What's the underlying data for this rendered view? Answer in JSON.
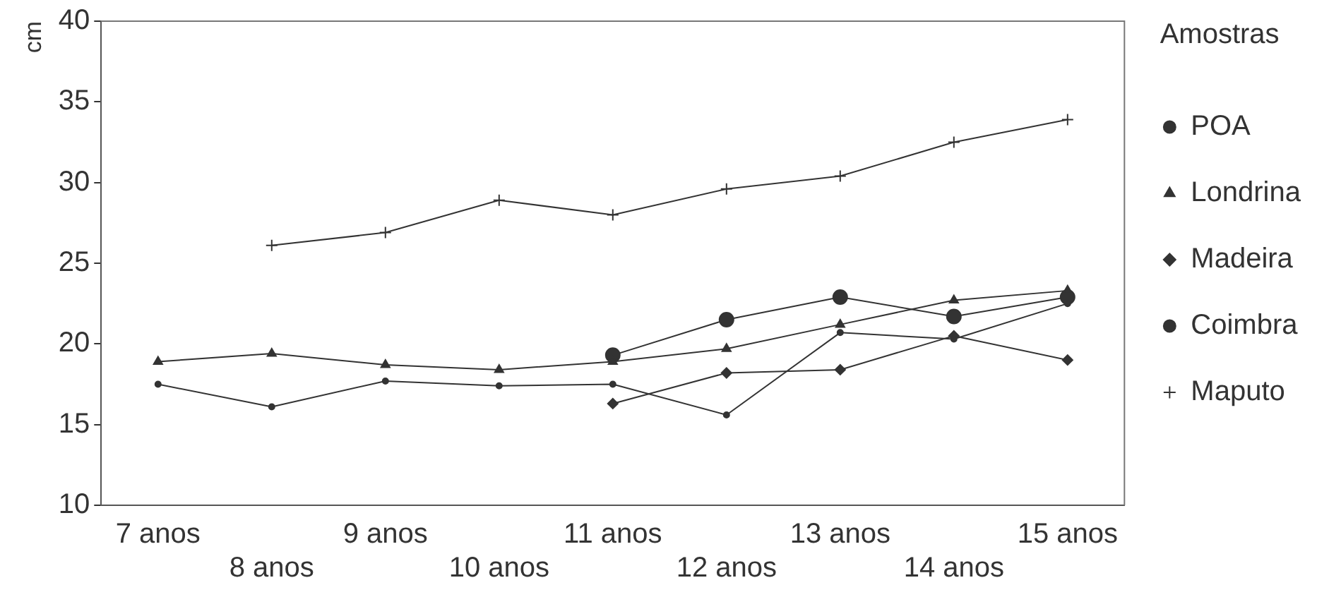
{
  "chart_data": {
    "type": "line",
    "ylabel": "cm",
    "legend_title": "Amostras",
    "legend": "right",
    "categories": [
      "7 anos",
      "8 anos",
      "9 anos",
      "10 anos",
      "11 anos",
      "12 anos",
      "13 anos",
      "14 anos",
      "15 anos"
    ],
    "ylim": [
      10,
      40
    ],
    "yticks": [
      10,
      15,
      20,
      25,
      30,
      35,
      40
    ],
    "grid": false,
    "series": [
      {
        "name": "POA",
        "color": "#333333",
        "marker": "circle",
        "values": [
          17.5,
          16.1,
          17.7,
          17.4,
          17.5,
          15.6,
          20.7,
          20.3,
          22.5
        ]
      },
      {
        "name": "Londrina",
        "color": "#333333",
        "marker": "triangle",
        "values": [
          18.9,
          19.4,
          18.7,
          18.4,
          18.9,
          19.7,
          21.2,
          22.7,
          23.3
        ]
      },
      {
        "name": "Madeira",
        "color": "#333333",
        "marker": "diamond",
        "values": [
          null,
          null,
          null,
          null,
          16.3,
          18.2,
          18.4,
          20.5,
          19.0
        ]
      },
      {
        "name": "Coimbra",
        "color": "#333333",
        "marker": "circle",
        "values": [
          null,
          null,
          null,
          null,
          19.3,
          21.5,
          22.9,
          21.7,
          22.9
        ]
      },
      {
        "name": "Maputo",
        "color": "#333333",
        "marker": "cross",
        "values": [
          null,
          26.1,
          26.9,
          28.9,
          28.0,
          29.6,
          30.4,
          32.5,
          33.9
        ]
      }
    ]
  }
}
